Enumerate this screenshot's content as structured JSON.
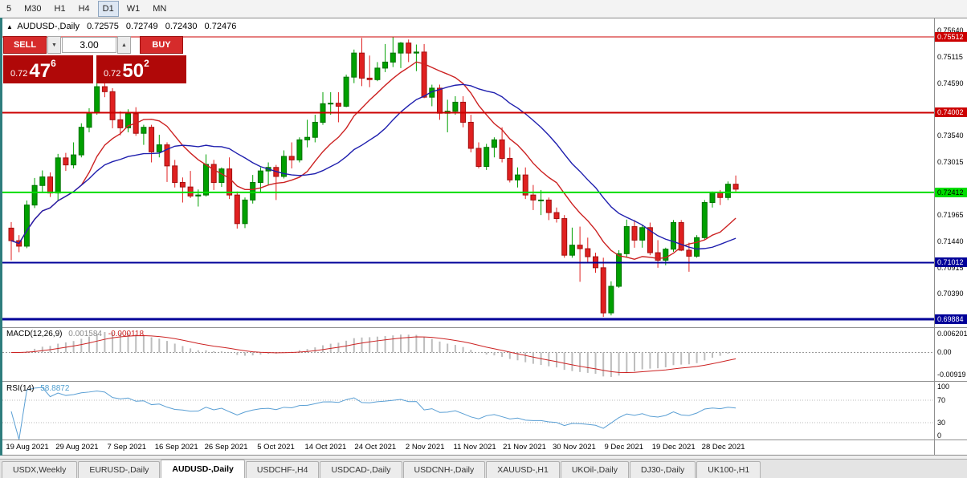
{
  "toolbar": {
    "timeframes": [
      "5",
      "M30",
      "H1",
      "H4",
      "D1",
      "W1",
      "MN"
    ],
    "active_timeframe": "D1"
  },
  "chart_header": {
    "marker": "▲",
    "title": "AUDUSD-,Daily",
    "open": "0.72575",
    "high": "0.72749",
    "low": "0.72430",
    "close": "0.72476"
  },
  "trade_panel": {
    "sell_label": "SELL",
    "buy_label": "BUY",
    "lot": "3.00",
    "spin_down": "▼",
    "spin_up": "▲",
    "sell_price": {
      "prefix": "0.72",
      "big": "47",
      "sup": "6"
    },
    "buy_price": {
      "prefix": "0.72",
      "big": "50",
      "sup": "2"
    }
  },
  "macd_label": {
    "name": "MACD(12,26,9)",
    "main": "0.001584",
    "signal": "-0.000118"
  },
  "rsi_label": {
    "name": "RSI(14)",
    "value": "58.8872"
  },
  "tabs": [
    "USDX,Weekly",
    "EURUSD-,Daily",
    "AUDUSD-,Daily",
    "USDCHF-,H4",
    "USDCAD-,Daily",
    "USDCNH-,Daily",
    "XAUUSD-,H1",
    "UKOil-,Daily",
    "DJ30-,Daily",
    "UK100-,H1"
  ],
  "active_tab": "AUDUSD-,Daily",
  "chart_data": {
    "type": "candlestick",
    "symbol": "AUDUSD-",
    "timeframe": "Daily",
    "title": "AUDUSD-,Daily 0.72575 0.72749 0.72430 0.72476",
    "ohlc_current": {
      "open": 0.72575,
      "high": 0.72749,
      "low": 0.7243,
      "close": 0.72476
    },
    "candle_up_color": "#00a000",
    "candle_down_color": "#e02020",
    "y_ticks": [
      "0.75640",
      "0.75115",
      "0.74590",
      "0.73540",
      "0.73015",
      "0.71965",
      "0.71440",
      "0.70915",
      "0.70390"
    ],
    "hlines": [
      {
        "price": 0.75512,
        "label": "0.75512",
        "color": "#cc0000",
        "width": 1,
        "badge_bg": "#cc0000",
        "badge_fg": "#ffffff"
      },
      {
        "price": 0.74002,
        "label": "0.74002",
        "color": "#cc0000",
        "width": 2,
        "badge_bg": "#cc0000",
        "badge_fg": "#ffffff"
      },
      {
        "price": 0.72412,
        "label": "0.72412",
        "color": "#00dd00",
        "width": 2,
        "badge_bg": "#00dd00",
        "badge_fg": "#000000"
      },
      {
        "price": 0.71012,
        "label": "0.71012",
        "color": "#000099",
        "width": 2,
        "badge_bg": "#000099",
        "badge_fg": "#ffffff"
      },
      {
        "price": 0.69884,
        "label": "0.69884",
        "color": "#000099",
        "width": 3,
        "badge_bg": "#000099",
        "badge_fg": "#ffffff"
      }
    ],
    "moving_averages": [
      {
        "name": "MA fast",
        "period": 10,
        "color": "#cc2222"
      },
      {
        "name": "MA slow",
        "period": 20,
        "color": "#1f1fae"
      }
    ],
    "macd": {
      "params": "12,26,9",
      "current_main": 0.001584,
      "current_signal": -0.000118,
      "ticks": [
        "0.006201",
        "0.00",
        "-0.00919"
      ],
      "histogram_color": "#bdbdbd",
      "signal_color": "#cc2222"
    },
    "rsi": {
      "period": 14,
      "current": 58.8872,
      "levels": [
        70,
        30
      ],
      "ticks": [
        100,
        70,
        30,
        0
      ],
      "color": "#5a9fd4"
    },
    "x_labels": [
      "19 Aug 2021",
      "29 Aug 2021",
      "7 Sep 2021",
      "16 Sep 2021",
      "26 Sep 2021",
      "5 Oct 2021",
      "14 Oct 2021",
      "24 Oct 2021",
      "2 Nov 2021",
      "11 Nov 2021",
      "21 Nov 2021",
      "30 Nov 2021",
      "9 Dec 2021",
      "19 Dec 2021",
      "28 Dec 2021"
    ],
    "candles": [
      [
        0.717,
        0.7182,
        0.7106,
        0.7145
      ],
      [
        0.7145,
        0.7156,
        0.7122,
        0.7134
      ],
      [
        0.7134,
        0.7225,
        0.713,
        0.7216
      ],
      [
        0.7216,
        0.727,
        0.721,
        0.7255
      ],
      [
        0.7255,
        0.7285,
        0.7242,
        0.7272
      ],
      [
        0.7272,
        0.7281,
        0.7232,
        0.724
      ],
      [
        0.724,
        0.7318,
        0.7224,
        0.731
      ],
      [
        0.731,
        0.732,
        0.7284,
        0.7296
      ],
      [
        0.7296,
        0.7341,
        0.7289,
        0.7316
      ],
      [
        0.7316,
        0.7379,
        0.7311,
        0.7371
      ],
      [
        0.7371,
        0.7409,
        0.7361,
        0.74
      ],
      [
        0.74,
        0.7478,
        0.7396,
        0.7452
      ],
      [
        0.7452,
        0.7462,
        0.7431,
        0.7442
      ],
      [
        0.7442,
        0.7449,
        0.7369,
        0.7386
      ],
      [
        0.7386,
        0.7403,
        0.7355,
        0.737
      ],
      [
        0.737,
        0.7407,
        0.7361,
        0.7398
      ],
      [
        0.7398,
        0.7411,
        0.7354,
        0.7359
      ],
      [
        0.7359,
        0.7376,
        0.7336,
        0.7371
      ],
      [
        0.7371,
        0.7376,
        0.7301,
        0.7322
      ],
      [
        0.7322,
        0.7356,
        0.7311,
        0.7336
      ],
      [
        0.7336,
        0.7341,
        0.7262,
        0.7294
      ],
      [
        0.7294,
        0.7306,
        0.7251,
        0.7261
      ],
      [
        0.7261,
        0.7271,
        0.7221,
        0.7252
      ],
      [
        0.7252,
        0.7284,
        0.723,
        0.7234
      ],
      [
        0.7234,
        0.7247,
        0.7213,
        0.7236
      ],
      [
        0.7236,
        0.7317,
        0.7233,
        0.7297
      ],
      [
        0.7297,
        0.7306,
        0.7246,
        0.7261
      ],
      [
        0.7261,
        0.7291,
        0.7252,
        0.7288
      ],
      [
        0.7288,
        0.7311,
        0.7228,
        0.7236
      ],
      [
        0.7236,
        0.7243,
        0.7169,
        0.7179
      ],
      [
        0.7179,
        0.7231,
        0.717,
        0.7226
      ],
      [
        0.7226,
        0.7276,
        0.7219,
        0.7261
      ],
      [
        0.7261,
        0.7291,
        0.7241,
        0.7284
      ],
      [
        0.7284,
        0.7301,
        0.7256,
        0.7291
      ],
      [
        0.7291,
        0.7296,
        0.7226,
        0.7273
      ],
      [
        0.7273,
        0.7325,
        0.7269,
        0.7313
      ],
      [
        0.7313,
        0.7341,
        0.7289,
        0.7306
      ],
      [
        0.7306,
        0.7351,
        0.7301,
        0.7346
      ],
      [
        0.7346,
        0.7386,
        0.7331,
        0.7351
      ],
      [
        0.7351,
        0.7396,
        0.7341,
        0.7381
      ],
      [
        0.7381,
        0.7441,
        0.7376,
        0.7418
      ],
      [
        0.7418,
        0.7441,
        0.7396,
        0.7419
      ],
      [
        0.7419,
        0.7441,
        0.7381,
        0.7413
      ],
      [
        0.7413,
        0.7476,
        0.7411,
        0.7471
      ],
      [
        0.7471,
        0.7526,
        0.7459,
        0.7519
      ],
      [
        0.7519,
        0.7549,
        0.7453,
        0.7469
      ],
      [
        0.7469,
        0.7514,
        0.7451,
        0.7466
      ],
      [
        0.7466,
        0.7501,
        0.7463,
        0.7489
      ],
      [
        0.7489,
        0.7537,
        0.7481,
        0.7501
      ],
      [
        0.7501,
        0.7551,
        0.7491,
        0.7519
      ],
      [
        0.7519,
        0.7541,
        0.7489,
        0.7539
      ],
      [
        0.7539,
        0.7546,
        0.7501,
        0.7519
      ],
      [
        0.7519,
        0.7536,
        0.7483,
        0.7521
      ],
      [
        0.7521,
        0.7537,
        0.7429,
        0.7431
      ],
      [
        0.7431,
        0.7456,
        0.7413,
        0.7449
      ],
      [
        0.7449,
        0.7456,
        0.7386,
        0.7399
      ],
      [
        0.7399,
        0.7426,
        0.7361,
        0.7403
      ],
      [
        0.7403,
        0.7433,
        0.7396,
        0.7421
      ],
      [
        0.7421,
        0.7433,
        0.7371,
        0.7381
      ],
      [
        0.7381,
        0.7396,
        0.7321,
        0.7329
      ],
      [
        0.7329,
        0.7341,
        0.7289,
        0.7293
      ],
      [
        0.7293,
        0.7338,
        0.7286,
        0.7331
      ],
      [
        0.7331,
        0.7351,
        0.7311,
        0.7346
      ],
      [
        0.7346,
        0.7371,
        0.7301,
        0.7309
      ],
      [
        0.7309,
        0.7331,
        0.7261,
        0.7266
      ],
      [
        0.7266,
        0.7291,
        0.7251,
        0.7276
      ],
      [
        0.7276,
        0.7291,
        0.7228,
        0.7236
      ],
      [
        0.7236,
        0.7256,
        0.7206,
        0.7226
      ],
      [
        0.7226,
        0.7246,
        0.7196,
        0.7226
      ],
      [
        0.7226,
        0.7231,
        0.7186,
        0.7201
      ],
      [
        0.7201,
        0.7211,
        0.7181,
        0.7189
      ],
      [
        0.7189,
        0.7196,
        0.7111,
        0.7116
      ],
      [
        0.7116,
        0.7171,
        0.7111,
        0.7136
      ],
      [
        0.7136,
        0.7173,
        0.7063,
        0.7129
      ],
      [
        0.7129,
        0.7151,
        0.7101,
        0.7113
      ],
      [
        0.7113,
        0.7121,
        0.7081,
        0.7091
      ],
      [
        0.7091,
        0.7111,
        0.6993,
        0.7001
      ],
      [
        0.7001,
        0.7064,
        0.6996,
        0.7054
      ],
      [
        0.7054,
        0.7126,
        0.7051,
        0.7119
      ],
      [
        0.7119,
        0.7187,
        0.7111,
        0.7173
      ],
      [
        0.7173,
        0.7186,
        0.7131,
        0.7146
      ],
      [
        0.7146,
        0.7176,
        0.7131,
        0.7171
      ],
      [
        0.7171,
        0.7181,
        0.7116,
        0.7121
      ],
      [
        0.7121,
        0.7146,
        0.7091,
        0.7106
      ],
      [
        0.7106,
        0.7131,
        0.7096,
        0.7128
      ],
      [
        0.7128,
        0.7186,
        0.7123,
        0.7181
      ],
      [
        0.7181,
        0.7186,
        0.7124,
        0.7126
      ],
      [
        0.7126,
        0.7141,
        0.7083,
        0.7114
      ],
      [
        0.7114,
        0.7156,
        0.7111,
        0.7151
      ],
      [
        0.7151,
        0.7226,
        0.7146,
        0.7221
      ],
      [
        0.7221,
        0.7243,
        0.7211,
        0.7241
      ],
      [
        0.7241,
        0.7246,
        0.7216,
        0.7231
      ],
      [
        0.7231,
        0.7263,
        0.7226,
        0.72575
      ],
      [
        0.72575,
        0.72749,
        0.7243,
        0.72476
      ]
    ]
  }
}
